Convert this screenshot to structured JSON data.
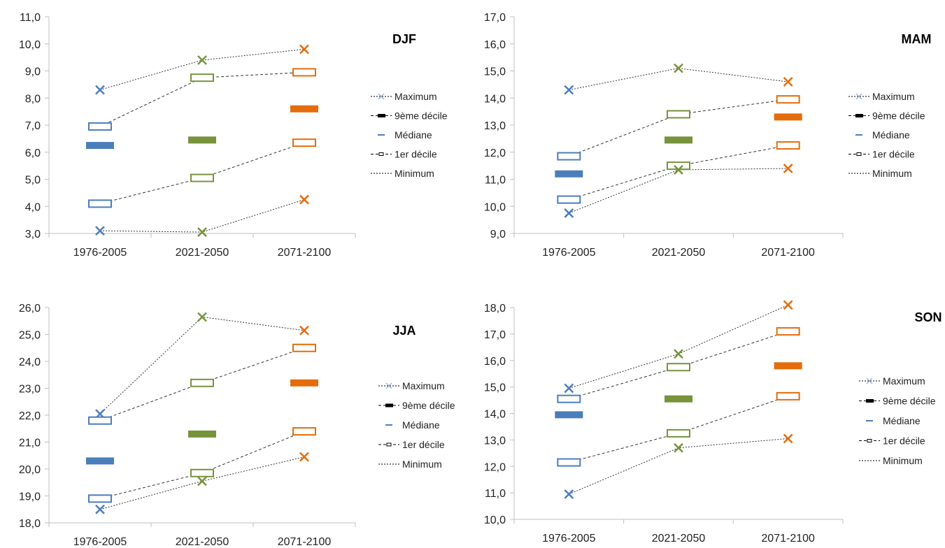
{
  "colors": {
    "blue": "#4a7ebb",
    "green": "#77933c",
    "orange": "#e46c0a",
    "axis": "#bfbfbf",
    "guide": "#333333",
    "text": "#000000"
  },
  "legend_labels": [
    "Maximum",
    "9ème décile",
    "Médiane",
    "1er décile",
    "Minimum"
  ],
  "chart_data": [
    {
      "type": "line",
      "title": "DJF",
      "categories": [
        "1976-2005",
        "2021-2050",
        "2071-2100"
      ],
      "ylim": [
        3.0,
        11.0
      ],
      "yticks": [
        "3,0",
        "4,0",
        "5,0",
        "6,0",
        "7,0",
        "8,0",
        "9,0",
        "10,0",
        "11,0"
      ],
      "series": [
        {
          "name": "Maximum",
          "values": [
            8.3,
            9.4,
            9.8
          ]
        },
        {
          "name": "9ème décile",
          "values": [
            6.95,
            8.75,
            8.95
          ]
        },
        {
          "name": "Médiane",
          "values": [
            6.25,
            6.45,
            7.6
          ]
        },
        {
          "name": "1er décile",
          "values": [
            4.1,
            5.05,
            6.35
          ]
        },
        {
          "name": "Minimum",
          "values": [
            3.1,
            3.05,
            4.25
          ]
        }
      ]
    },
    {
      "type": "line",
      "title": "MAM",
      "categories": [
        "1976-2005",
        "2021-2050",
        "2071-2100"
      ],
      "ylim": [
        9.0,
        17.0
      ],
      "yticks": [
        "9,0",
        "10,0",
        "11,0",
        "12,0",
        "13,0",
        "14,0",
        "15,0",
        "16,0",
        "17,0"
      ],
      "series": [
        {
          "name": "Maximum",
          "values": [
            14.3,
            15.1,
            14.6
          ]
        },
        {
          "name": "9ème décile",
          "values": [
            11.85,
            13.4,
            13.95
          ]
        },
        {
          "name": "Médiane",
          "values": [
            11.2,
            12.45,
            13.3
          ]
        },
        {
          "name": "1er décile",
          "values": [
            10.25,
            11.5,
            12.25
          ]
        },
        {
          "name": "Minimum",
          "values": [
            9.75,
            11.35,
            11.4
          ]
        }
      ]
    },
    {
      "type": "line",
      "title": "JJA",
      "categories": [
        "1976-2005",
        "2021-2050",
        "2071-2100"
      ],
      "ylim": [
        18.0,
        26.0
      ],
      "yticks": [
        "18,0",
        "19,0",
        "20,0",
        "21,0",
        "22,0",
        "23,0",
        "24,0",
        "25,0",
        "26,0"
      ],
      "series": [
        {
          "name": "Maximum",
          "values": [
            22.05,
            25.65,
            25.15
          ]
        },
        {
          "name": "9ème décile",
          "values": [
            21.8,
            23.2,
            24.5
          ]
        },
        {
          "name": "Médiane",
          "values": [
            20.3,
            21.3,
            23.2
          ]
        },
        {
          "name": "1er décile",
          "values": [
            18.9,
            19.85,
            21.4
          ]
        },
        {
          "name": "Minimum",
          "values": [
            18.5,
            19.55,
            20.45
          ]
        }
      ]
    },
    {
      "type": "line",
      "title": "SON",
      "categories": [
        "1976-2005",
        "2021-2050",
        "2071-2100"
      ],
      "ylim": [
        10.0,
        18.0
      ],
      "yticks": [
        "10,0",
        "11,0",
        "12,0",
        "13,0",
        "14,0",
        "15,0",
        "16,0",
        "17,0",
        "18,0"
      ],
      "series": [
        {
          "name": "Maximum",
          "values": [
            14.95,
            16.25,
            18.1
          ]
        },
        {
          "name": "9ème décile",
          "values": [
            14.55,
            15.75,
            17.1
          ]
        },
        {
          "name": "Médiane",
          "values": [
            13.95,
            14.55,
            15.8
          ]
        },
        {
          "name": "1er décile",
          "values": [
            12.15,
            13.25,
            14.65
          ]
        },
        {
          "name": "Minimum",
          "values": [
            10.95,
            12.7,
            13.05
          ]
        }
      ]
    }
  ]
}
